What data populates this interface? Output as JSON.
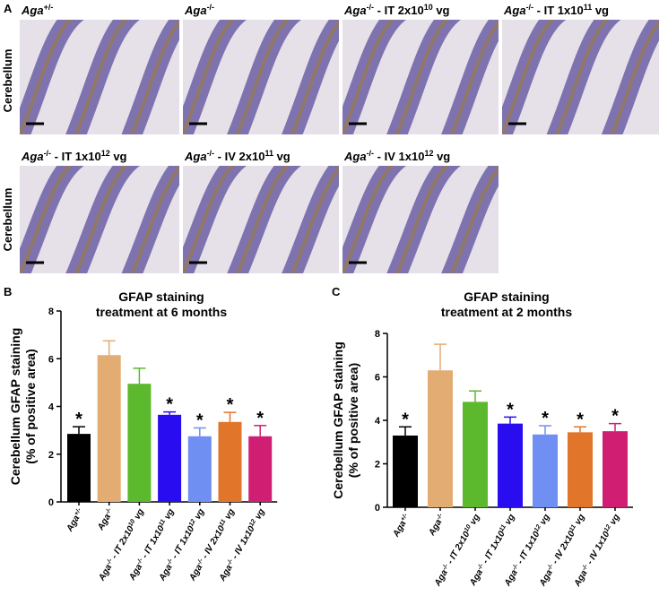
{
  "panel_a": {
    "letter": "A",
    "row_label": "Cerebellum",
    "images": [
      {
        "label": [
          "Aga",
          "+/-"
        ]
      },
      {
        "label": [
          "Aga",
          "-/-"
        ]
      },
      {
        "label": [
          "Aga",
          "-/-",
          " - IT 2x10",
          "10",
          " vg"
        ]
      },
      {
        "label": [
          "Aga",
          "-/-",
          " - IT 1x10",
          "11",
          " vg"
        ]
      },
      {
        "label": [
          "Aga",
          "-/-",
          " - IT 1x10",
          "12",
          " vg"
        ]
      },
      {
        "label": [
          "Aga",
          "-/-",
          " - IV 2x10",
          "11",
          " vg"
        ]
      },
      {
        "label": [
          "Aga",
          "-/-",
          " - IV 1x10",
          "12",
          " vg"
        ]
      }
    ]
  },
  "chart_data": [
    {
      "type": "bar",
      "letter": "B",
      "title": [
        "GFAP staining",
        "treatment at 6 months"
      ],
      "y_label": [
        "Cerebellum GFAP staining",
        "(% of positive area)"
      ],
      "categories": [
        [
          "Aga",
          "+/-"
        ],
        [
          "Aga",
          "-/-"
        ],
        [
          "Aga",
          "-/-",
          " - IT 2x10",
          "10",
          " vg"
        ],
        [
          "Aga",
          "-/-",
          " - IT 1x10",
          "11",
          " vg"
        ],
        [
          "Aga",
          "-/-",
          " - IT 1x10",
          "12",
          " vg"
        ],
        [
          "Aga",
          "-/-",
          " - IV 2x10",
          "11",
          " vg"
        ],
        [
          "Aga",
          "-/-",
          " - IV 1x10",
          "12",
          " vg"
        ]
      ],
      "values": [
        2.85,
        6.15,
        4.95,
        3.65,
        2.75,
        3.35,
        2.75
      ],
      "errors": [
        0.3,
        0.6,
        0.65,
        0.12,
        0.35,
        0.4,
        0.45
      ],
      "colors": [
        "#000000",
        "#e2ac72",
        "#5cb82c",
        "#2a0cf0",
        "#6f8ff2",
        "#e17529",
        "#d01f72"
      ],
      "significance": [
        "*",
        null,
        null,
        "*",
        "*",
        "*",
        "*"
      ],
      "ylim": [
        0,
        8
      ],
      "yticks": [
        0,
        2,
        4,
        6,
        8
      ]
    },
    {
      "type": "bar",
      "letter": "C",
      "title": [
        "GFAP staining",
        "treatment at 2 months"
      ],
      "y_label": [
        "Cerebellum GFAP staining",
        "(% of positive area)"
      ],
      "categories": [
        [
          "Aga",
          "+/-"
        ],
        [
          "Aga",
          "-/-"
        ],
        [
          "Aga",
          "-/-",
          " - IT 2x10",
          "10",
          " vg"
        ],
        [
          "Aga",
          "-/-",
          " - IT 1x10",
          "11",
          " vg"
        ],
        [
          "Aga",
          "-/-",
          " - IT 1x10",
          "12",
          " vg"
        ],
        [
          "Aga",
          "-/-",
          " - IV 2x10",
          "11",
          " vg"
        ],
        [
          "Aga",
          "-/-",
          " - IV 1x10",
          "12",
          " vg"
        ]
      ],
      "values": [
        3.3,
        6.3,
        4.85,
        3.85,
        3.35,
        3.45,
        3.5
      ],
      "errors": [
        0.4,
        1.2,
        0.5,
        0.3,
        0.4,
        0.25,
        0.35
      ],
      "colors": [
        "#000000",
        "#e2ac72",
        "#5cb82c",
        "#2a0cf0",
        "#6f8ff2",
        "#e17529",
        "#d01f72"
      ],
      "significance": [
        "*",
        null,
        null,
        "*",
        "*",
        "*",
        "*"
      ],
      "ylim": [
        0,
        8
      ],
      "yticks": [
        0,
        2,
        4,
        6,
        8
      ]
    }
  ]
}
